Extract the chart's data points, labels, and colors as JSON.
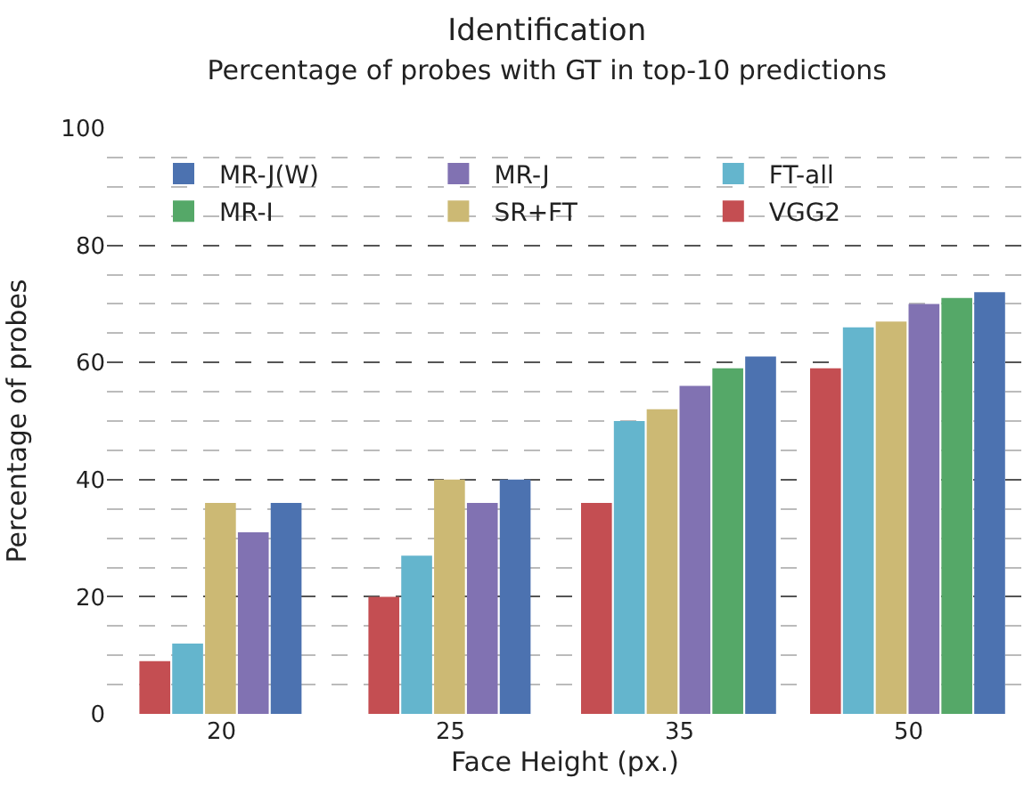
{
  "chart_data": {
    "type": "bar",
    "title": "Identification",
    "subtitle": "Percentage of probes with GT in top-10 predictions",
    "xlabel": "Face Height (px.)",
    "ylabel": "Percentage of probes",
    "categories": [
      "20",
      "25",
      "35",
      "50"
    ],
    "series": [
      {
        "name": "VGG2",
        "color": "#c44e52",
        "values": [
          9,
          20,
          36,
          59
        ]
      },
      {
        "name": "FT-all",
        "color": "#64b5cd",
        "values": [
          12,
          27,
          50,
          66
        ]
      },
      {
        "name": "SR+FT",
        "color": "#ccb974",
        "values": [
          36,
          40,
          52,
          67
        ]
      },
      {
        "name": "MR-J",
        "color": "#8172b2",
        "values": [
          31,
          36,
          56,
          70
        ]
      },
      {
        "name": "MR-I",
        "color": "#55a868",
        "values": [
          null,
          null,
          59,
          71
        ]
      },
      {
        "name": "MR-J(W)",
        "color": "#4c72b0",
        "values": [
          36,
          40,
          61,
          72
        ]
      }
    ],
    "ylim": [
      0,
      100
    ],
    "yticks": [
      0,
      {
        "value": 5,
        "label": null
      },
      {
        "value": 10,
        "label": null
      },
      {
        "value": 15,
        "label": null
      },
      20,
      {
        "value": 25,
        "label": null
      },
      {
        "value": 30,
        "label": null
      },
      {
        "value": 35,
        "label": null
      },
      40,
      {
        "value": 45,
        "label": null
      },
      {
        "value": 50,
        "label": null
      },
      {
        "value": 55,
        "label": null
      },
      60,
      {
        "value": 65,
        "label": null
      },
      {
        "value": 70,
        "label": null
      },
      {
        "value": 75,
        "label": null
      },
      80,
      {
        "value": 85,
        "label": null
      },
      {
        "value": 90,
        "label": null
      },
      {
        "value": 95,
        "label": null
      },
      100
    ],
    "grid": "y",
    "legend": "top"
  }
}
